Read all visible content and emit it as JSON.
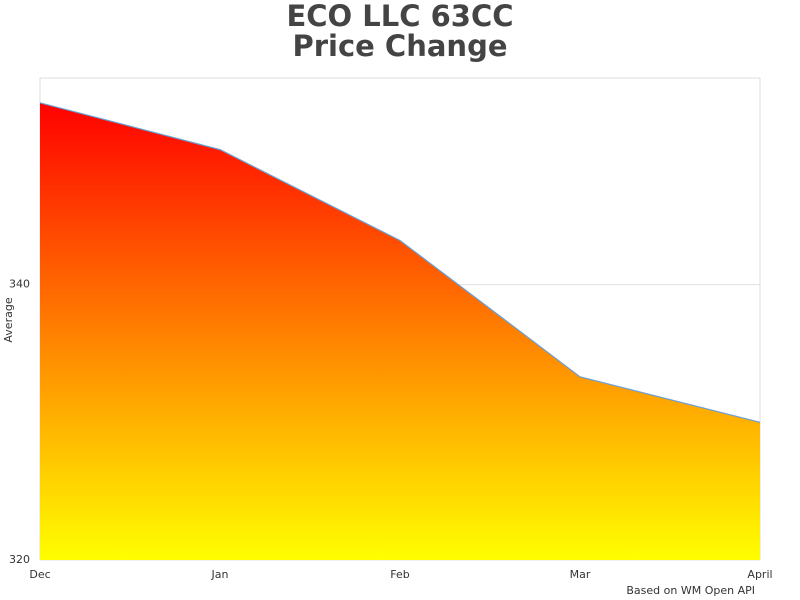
{
  "chart_data": {
    "type": "area",
    "title": [
      "ECO LLC 63CC",
      "Price Change"
    ],
    "y_label": "Average",
    "credit": "Based on WM Open API",
    "categories": [
      "Dec",
      "Jan",
      "Feb",
      "Mar",
      "April"
    ],
    "values": [
      353.2,
      349.8,
      343.2,
      333.3,
      330.0
    ],
    "fill_gradient": [
      "#ff0000",
      "#ffff00"
    ],
    "line_color": "#6a9fd4",
    "ylim": [
      320,
      355
    ],
    "yticks": [
      320,
      340
    ],
    "grid": true
  }
}
